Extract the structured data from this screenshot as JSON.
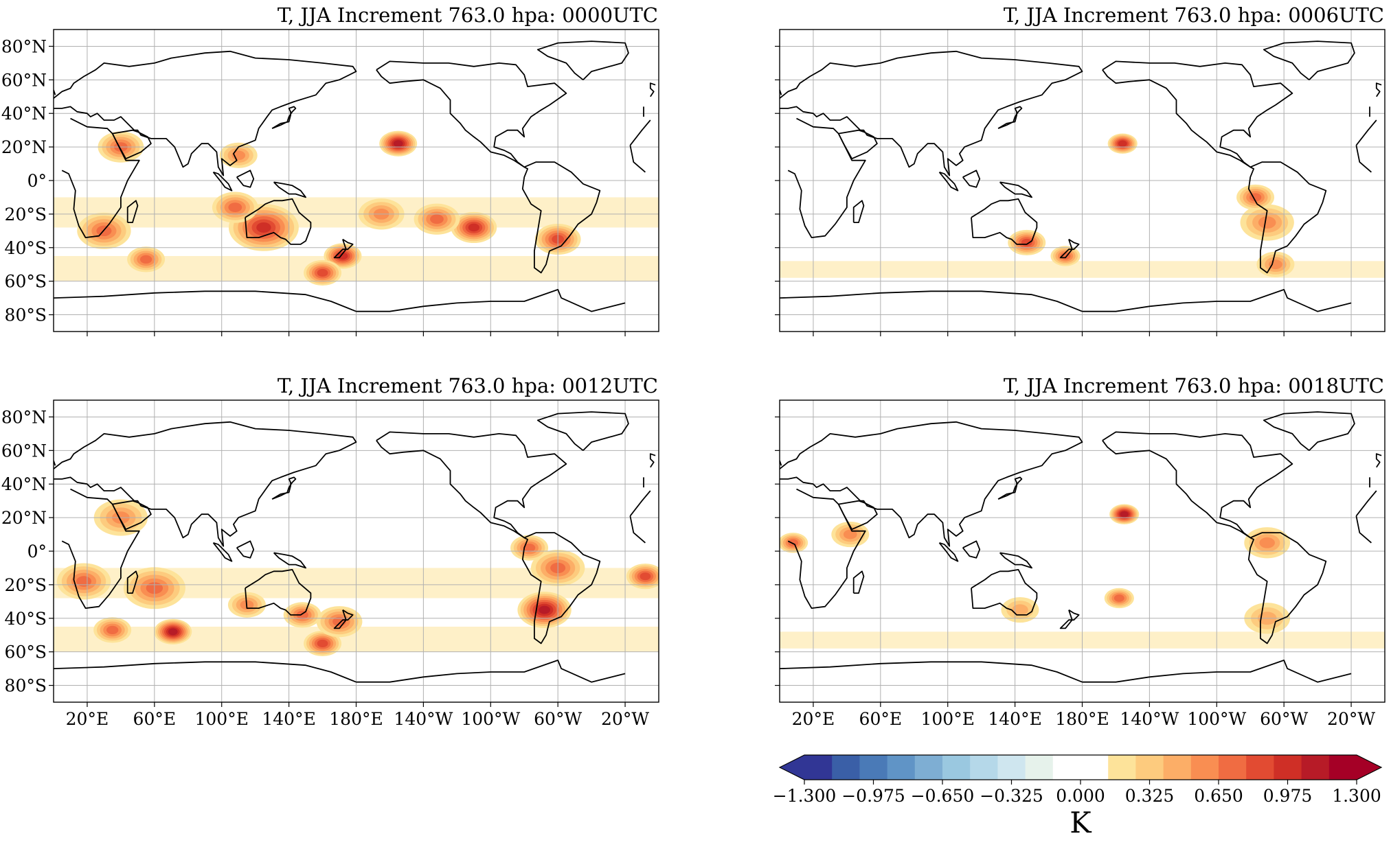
{
  "figure": {
    "panels": [
      {
        "title": "T, JJA Increment 763.0 hpa: 0000UTC",
        "utc": "0000UTC"
      },
      {
        "title": "T, JJA Increment 763.0 hpa: 0006UTC",
        "utc": "0006UTC"
      },
      {
        "title": "T, JJA Increment 763.0 hpa: 0012UTC",
        "utc": "0012UTC"
      },
      {
        "title": "T, JJA Increment 763.0 hpa: 0018UTC",
        "utc": "0018UTC"
      }
    ],
    "lat_ticks": [
      "80°N",
      "60°N",
      "40°N",
      "20°N",
      "0°",
      "20°S",
      "40°S",
      "60°S",
      "80°S"
    ],
    "lat_values": [
      80,
      60,
      40,
      20,
      0,
      -20,
      -40,
      -60,
      -80
    ],
    "lon_ticks": [
      "20°E",
      "60°E",
      "100°E",
      "140°E",
      "180°E",
      "140°W",
      "100°W",
      "60°W",
      "20°W"
    ],
    "lon_values": [
      20,
      60,
      100,
      140,
      180,
      220,
      260,
      300,
      340
    ],
    "lon_range": [
      0,
      360
    ],
    "lat_range": [
      -90,
      90
    ],
    "colorbar": {
      "unit": "K",
      "ticks": [
        "−1.300",
        "−0.975",
        "−0.650",
        "−0.325",
        "0.000",
        "0.325",
        "0.650",
        "0.975",
        "1.300"
      ],
      "tick_values": [
        -1.3,
        -0.975,
        -0.65,
        -0.325,
        0,
        0.325,
        0.65,
        0.975,
        1.3
      ],
      "range": [
        -1.3,
        1.3
      ],
      "extend": "both",
      "colors": [
        "#313695",
        "#3a5fa7",
        "#4a7ab7",
        "#6094c6",
        "#7eaed3",
        "#9ac8e0",
        "#b5d8e9",
        "#cfe6ef",
        "#e6f2eb",
        "#ffffff",
        "#ffffff",
        "#fde39a",
        "#fdcb7e",
        "#fcae67",
        "#f98e52",
        "#f06c42",
        "#e24b32",
        "#cf2f26",
        "#b71b27",
        "#a50026"
      ],
      "under_color": "#313695",
      "over_color": "#a50026"
    }
  },
  "chart_data": {
    "type": "heatmap",
    "variable": "T increment",
    "season": "JJA",
    "level_hpa": 763.0,
    "unit": "K",
    "panels": [
      {
        "utc": "0000UTC",
        "features": [
          {
            "lon": 125,
            "lat": -28,
            "peak": 0.9,
            "r": 8
          },
          {
            "lon": 108,
            "lat": -16,
            "peak": 0.7,
            "r": 5
          },
          {
            "lon": 250,
            "lat": -28,
            "peak": 0.9,
            "r": 5
          },
          {
            "lon": 205,
            "lat": 22,
            "peak": 1.0,
            "r": 4
          },
          {
            "lon": 172,
            "lat": -45,
            "peak": 0.9,
            "r": 4
          },
          {
            "lon": 160,
            "lat": -55,
            "peak": 0.8,
            "r": 4
          },
          {
            "lon": 300,
            "lat": -35,
            "peak": 0.8,
            "r": 5
          },
          {
            "lon": 228,
            "lat": -23,
            "peak": 0.65,
            "r": 5
          },
          {
            "lon": 30,
            "lat": -30,
            "peak": 0.6,
            "r": 6
          },
          {
            "lon": 40,
            "lat": 20,
            "peak": 0.6,
            "r": 5
          },
          {
            "lon": 55,
            "lat": -47,
            "peak": 0.6,
            "r": 4
          },
          {
            "lon": 195,
            "lat": -20,
            "peak": 0.5,
            "r": 5
          },
          {
            "lon": 110,
            "lat": 15,
            "peak": 0.5,
            "r": 4
          }
        ]
      },
      {
        "utc": "0006UTC",
        "features": [
          {
            "lon": 204,
            "lat": 22,
            "peak": 0.9,
            "r": 3
          },
          {
            "lon": 147,
            "lat": -37,
            "peak": 0.8,
            "r": 4
          },
          {
            "lon": 170,
            "lat": -45,
            "peak": 0.7,
            "r": 3
          },
          {
            "lon": 290,
            "lat": -25,
            "peak": 0.5,
            "r": 6
          },
          {
            "lon": 283,
            "lat": -10,
            "peak": 0.6,
            "r": 4
          },
          {
            "lon": 295,
            "lat": -50,
            "peak": 0.5,
            "r": 4
          }
        ]
      },
      {
        "utc": "0012UTC",
        "features": [
          {
            "lon": 292,
            "lat": -35,
            "peak": 1.0,
            "r": 6
          },
          {
            "lon": 71,
            "lat": -48,
            "peak": 1.0,
            "r": 4
          },
          {
            "lon": 60,
            "lat": -22,
            "peak": 0.7,
            "r": 7
          },
          {
            "lon": 18,
            "lat": -18,
            "peak": 0.6,
            "r": 6
          },
          {
            "lon": 35,
            "lat": -47,
            "peak": 0.7,
            "r": 4
          },
          {
            "lon": 160,
            "lat": -55,
            "peak": 0.8,
            "r": 4
          },
          {
            "lon": 170,
            "lat": -42,
            "peak": 0.6,
            "r": 5
          },
          {
            "lon": 148,
            "lat": -38,
            "peak": 0.6,
            "r": 4
          },
          {
            "lon": 115,
            "lat": -32,
            "peak": 0.5,
            "r": 4
          },
          {
            "lon": 352,
            "lat": -15,
            "peak": 0.8,
            "r": 4
          },
          {
            "lon": 300,
            "lat": -10,
            "peak": 0.6,
            "r": 6
          },
          {
            "lon": 283,
            "lat": 2,
            "peak": 0.7,
            "r": 4
          },
          {
            "lon": 40,
            "lat": 20,
            "peak": 0.5,
            "r": 6
          }
        ]
      },
      {
        "utc": "0018UTC",
        "features": [
          {
            "lon": 205,
            "lat": 22,
            "peak": 1.0,
            "r": 3
          },
          {
            "lon": 202,
            "lat": -28,
            "peak": 0.7,
            "r": 3
          },
          {
            "lon": 8,
            "lat": 5,
            "peak": 0.6,
            "r": 3
          },
          {
            "lon": 42,
            "lat": 10,
            "peak": 0.5,
            "r": 4
          },
          {
            "lon": 290,
            "lat": 5,
            "peak": 0.5,
            "r": 5
          },
          {
            "lon": 290,
            "lat": -40,
            "peak": 0.45,
            "r": 5
          },
          {
            "lon": 143,
            "lat": -35,
            "peak": 0.45,
            "r": 4
          }
        ]
      }
    ]
  }
}
